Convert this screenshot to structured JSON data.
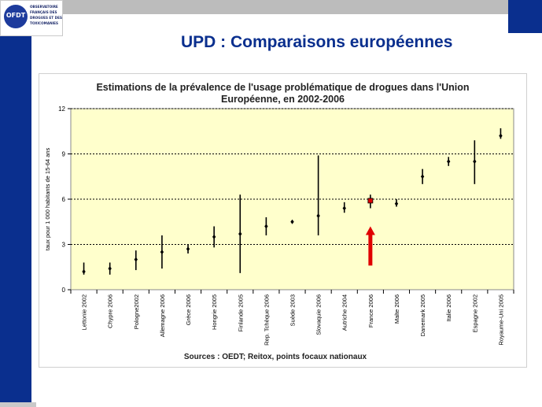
{
  "header": {
    "logo_text_lines": [
      "OBSERVATOIRE",
      "FRANÇAIS DES",
      "DROGUES ET DES",
      "TOXICOMANIES"
    ],
    "logo_mark": "OFDT",
    "title": "UPD : Comparaisons européennes"
  },
  "chart_data": {
    "type": "scatter",
    "title_line1": "Estimations de la prévalence de l'usage problématique de drogues dans l'Union",
    "title_line2": "Européenne, en 2002-2006",
    "ylabel": "taux pour 1 000 habitants de 15-64 ans",
    "xlabel": "",
    "ylim": [
      0,
      12
    ],
    "yticks": [
      0,
      3,
      6,
      9,
      12
    ],
    "grid": true,
    "plot_background": "#ffffcc",
    "mark_color": "#000000",
    "highlight_color": "#e00000",
    "source": "Sources : OEDT;  Reitox,  points focaux  nationaux",
    "categories": [
      "Lettonie 2002",
      "Chypre 2006",
      "Pologne2002",
      "Allemagne 2006",
      "Grèce 2006",
      "Hongrie 2005",
      "Finlande 2005",
      "Rep. Tchèque 2006",
      "Suède 2003",
      "Slovaquie 2006",
      "Autriche 2004",
      "France 2006",
      "Malte 2006",
      "Danemark 2005",
      "Italie 2006",
      "Espagne 2002",
      "Royaume-Uni 2005"
    ],
    "series": [
      {
        "point": [
          1.2,
          1.4,
          2.0,
          2.5,
          2.7,
          3.5,
          3.7,
          4.2,
          4.5,
          4.9,
          5.4,
          5.9,
          5.7,
          7.5,
          8.5,
          8.5,
          10.2
        ],
        "low": [
          1.0,
          1.0,
          1.3,
          1.4,
          2.4,
          2.8,
          1.1,
          3.6,
          4.5,
          3.6,
          5.1,
          5.4,
          5.5,
          7.0,
          8.2,
          7.0,
          10.0
        ],
        "high": [
          1.8,
          1.8,
          2.6,
          3.6,
          3.0,
          4.2,
          6.3,
          4.8,
          4.5,
          8.9,
          5.8,
          6.3,
          6.0,
          8.0,
          8.8,
          9.9,
          10.7
        ]
      }
    ],
    "highlight_category": "France 2006",
    "arrow_top": 4.2,
    "arrow_bottom": 1.6
  }
}
